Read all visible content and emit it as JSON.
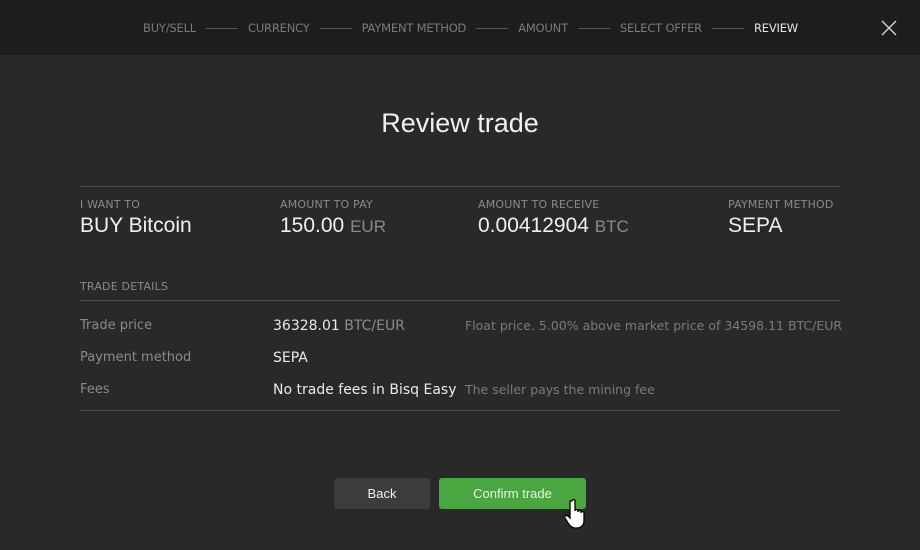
{
  "steps": [
    "BUY/SELL",
    "CURRENCY",
    "PAYMENT METHOD",
    "AMOUNT",
    "SELECT OFFER",
    "REVIEW"
  ],
  "active_step": "REVIEW",
  "title": "Review trade",
  "summary": {
    "want_label": "I WANT TO",
    "want_value": "BUY Bitcoin",
    "pay_label": "AMOUNT TO PAY",
    "pay_value": "150.00",
    "pay_unit": "EUR",
    "receive_label": "AMOUNT TO RECEIVE",
    "receive_value": "0.00412904",
    "receive_unit": "BTC",
    "method_label": "PAYMENT METHOD",
    "method_value": "SEPA"
  },
  "details": {
    "heading": "TRADE DETAILS",
    "rows": [
      {
        "key": "Trade price",
        "value": "36328.01",
        "unit": "BTC/EUR",
        "note": "Float price. 5.00% above market price of 34598.11 BTC/EUR"
      },
      {
        "key": "Payment method",
        "value": "SEPA",
        "unit": "",
        "note": ""
      },
      {
        "key": "Fees",
        "value": "No trade fees in Bisq Easy",
        "unit": "",
        "note": "The seller pays the mining fee"
      }
    ]
  },
  "buttons": {
    "back": "Back",
    "confirm": "Confirm trade"
  },
  "colors": {
    "accent": "#4aa640",
    "background": "#292929",
    "header": "#1d1d1d"
  }
}
